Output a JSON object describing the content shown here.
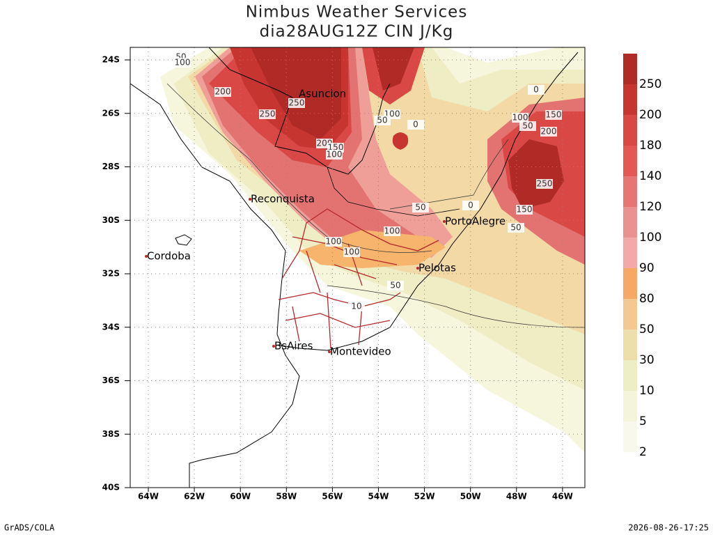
{
  "header": {
    "title": "Nimbus Weather Services",
    "subtitle": "dia28AUG12Z CIN J/Kg"
  },
  "map": {
    "lat_labels": [
      "24S",
      "26S",
      "28S",
      "30S",
      "32S",
      "34S",
      "36S",
      "38S",
      "40S"
    ],
    "lon_labels": [
      "64W",
      "62W",
      "60W",
      "58W",
      "56W",
      "54W",
      "52W",
      "50W",
      "48W",
      "46W"
    ],
    "cities": [
      "Asuncion",
      "Reconquista",
      "PortoAlegre",
      "Cordoba",
      "Pelotas",
      "BsAires",
      "Montevideo"
    ],
    "contour_labels": [
      50,
      100,
      200,
      250,
      250,
      200,
      150,
      100,
      100,
      50,
      0,
      0,
      100,
      150,
      50,
      200,
      250,
      150,
      50,
      50,
      0,
      100,
      100,
      100,
      50,
      10
    ]
  },
  "colorbar": {
    "labels": [
      250,
      200,
      180,
      140,
      120,
      100,
      90,
      80,
      50,
      30,
      10,
      5,
      2
    ],
    "colors": [
      "#b02a26",
      "#c6352f",
      "#d94844",
      "#e35855",
      "#e67674",
      "#ea9191",
      "#f3a9a7",
      "#f7a865",
      "#f3c892",
      "#eedeab",
      "#eeeec5",
      "#f3f4da",
      "#f8f9ec"
    ]
  },
  "footer": {
    "left": "GrADS/COLA",
    "right": "2026-08-26-17:25"
  }
}
